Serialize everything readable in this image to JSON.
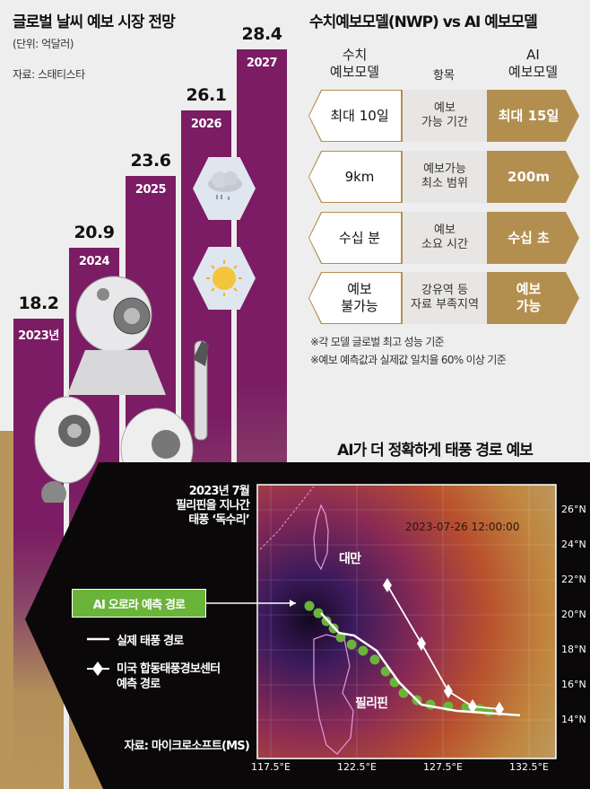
{
  "market": {
    "title": "글로벌 날씨 예보 시장 전망",
    "unit": "(단위: 억달러)",
    "source": "자료: 스태티스타"
  },
  "comparison": {
    "title": "수치예보모델(NWP) vs AI 예보모델",
    "col_left": [
      "수치",
      "예보모델"
    ],
    "col_mid": "항목",
    "col_right": [
      "AI",
      "예보모델"
    ],
    "rows": [
      {
        "nwp": "최대 10일",
        "item": [
          "예보",
          "가능 기간"
        ],
        "ai": "최대 15일"
      },
      {
        "nwp": "9km",
        "item": [
          "예보가능",
          "최소 범위"
        ],
        "ai": "200m"
      },
      {
        "nwp": "수십 분",
        "item": [
          "예보",
          "소요 시간"
        ],
        "ai": "수십 초"
      },
      {
        "nwp": [
          "예보",
          "불가능"
        ],
        "item": [
          "강유역 등",
          "자료 부족지역"
        ],
        "ai": [
          "예보",
          "가능"
        ]
      }
    ],
    "notes": [
      "※각 모델 글로벌 최고 성능 기준",
      "※예보 예측값과 실제값 일치율 60% 이상 기준"
    ]
  },
  "typhoon": {
    "title": "AI가 더 정확하게 태풍 경로 예보",
    "caption": [
      "2023년 7월",
      "필리핀을 지나간",
      "태풍 ‘독수리’"
    ],
    "timestamp": "2023-07-26 12:00:00",
    "labels": {
      "taiwan": "대만",
      "philippines": "필리핀"
    },
    "legend": {
      "ai": "AI 오로라 예측 경로",
      "actual": "실제 태풍 경로",
      "jtwc": [
        "미국 합동태풍경보센터",
        "예측 경로"
      ]
    },
    "source": "자료: 마이크로소프트(MS)",
    "colors": {
      "ai": "#6ab43a",
      "actual": "#ffffff",
      "jtwc": "#ffffff"
    }
  },
  "chart_data": [
    {
      "type": "bar",
      "categories": [
        "2023년",
        "2024",
        "2025",
        "2026",
        "2027"
      ],
      "values": [
        18.2,
        20.9,
        23.6,
        26.1,
        28.4
      ],
      "title": "글로벌 날씨 예보 시장 전망",
      "ylabel": "(단위: 억달러)",
      "color": "#7b1c64"
    },
    {
      "type": "line",
      "title": "AI가 더 정확하게 태풍 경로 예보",
      "xticks": [
        "117.5°E",
        "122.5°E",
        "127.5°E",
        "132.5°E"
      ],
      "yticks": [
        "14°N",
        "16°N",
        "18°N",
        "20°N",
        "22°N",
        "24°N",
        "26°N"
      ],
      "xlim": [
        117,
        133
      ],
      "ylim": [
        12,
        28
      ],
      "series": [
        {
          "name": "AI 오로라 예측 경로",
          "points": [
            [
              119.74,
              20.51
            ],
            [
              120.26,
              20.1
            ],
            [
              120.73,
              19.64
            ],
            [
              121.15,
              19.23
            ],
            [
              121.56,
              18.72
            ],
            [
              122.19,
              18.31
            ],
            [
              122.86,
              17.95
            ],
            [
              123.54,
              17.44
            ],
            [
              124.17,
              16.77
            ],
            [
              124.69,
              16.15
            ],
            [
              125.21,
              15.54
            ],
            [
              125.99,
              15.13
            ],
            [
              126.77,
              14.87
            ],
            [
              127.81,
              14.77
            ],
            [
              128.85,
              14.72
            ],
            [
              129.64,
              14.62
            ],
            [
              130.16,
              14.46
            ]
          ]
        },
        {
          "name": "실제 태풍 경로",
          "points": [
            [
              120.42,
              20.1
            ],
            [
              121.46,
              18.97
            ],
            [
              122.34,
              18.82
            ],
            [
              123.65,
              17.95
            ],
            [
              124.95,
              16.15
            ],
            [
              126.25,
              14.87
            ],
            [
              128.33,
              14.51
            ],
            [
              131.98,
              14.26
            ]
          ]
        },
        {
          "name": "미국 합동태풍경보센터 예측 경로",
          "points": [
            [
              124.27,
              21.69
            ],
            [
              126.25,
              18.36
            ],
            [
              127.81,
              15.64
            ],
            [
              129.22,
              14.77
            ],
            [
              130.78,
              14.62
            ]
          ]
        }
      ]
    }
  ]
}
